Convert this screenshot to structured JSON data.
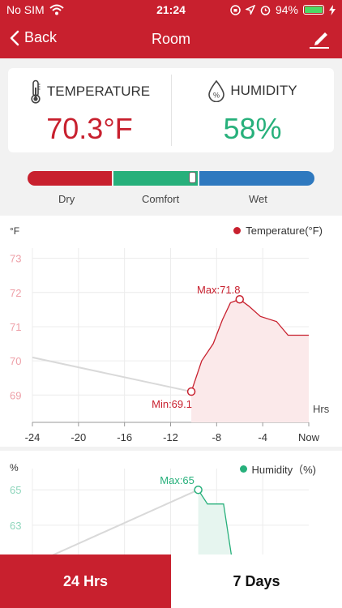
{
  "status_bar": {
    "carrier": "No SIM",
    "time": "21:24",
    "battery": "94%"
  },
  "nav": {
    "back_label": "Back",
    "title": "Room"
  },
  "summary": {
    "temperature": {
      "label": "TEMPERATURE",
      "value": "70.3°F",
      "color": "#c8202e"
    },
    "humidity": {
      "label": "HUMIDITY",
      "value": "58%",
      "color": "#27b07b"
    }
  },
  "comfort_bar": {
    "labels": [
      "Dry",
      "Comfort",
      "Wet"
    ],
    "colors": [
      "#c8202e",
      "#27b07b",
      "#2f79bf"
    ]
  },
  "chart_data": [
    {
      "type": "line",
      "y_unit": "°F",
      "legend": "Temperature(°F)",
      "x_label": "Hrs",
      "x_ticks": [
        "-24",
        "-20",
        "-16",
        "-12",
        "-8",
        "-4",
        "Now"
      ],
      "y_ticks": [
        73,
        72,
        71,
        70,
        69
      ],
      "ylim": [
        68.2,
        73.3
      ],
      "xlim": [
        -24,
        0
      ],
      "series": [
        {
          "values": [
            [
              -24,
              70.1
            ],
            [
              -10.2,
              69.1
            ]
          ],
          "color": "#d9d9d9"
        },
        {
          "values": [
            [
              -10.2,
              69.1
            ],
            [
              -9.3,
              70.0
            ],
            [
              -8.3,
              70.5
            ],
            [
              -7.5,
              71.2
            ],
            [
              -6.8,
              71.7
            ],
            [
              -6.0,
              71.8
            ],
            [
              -5.2,
              71.6
            ],
            [
              -4.2,
              71.3
            ],
            [
              -2.8,
              71.15
            ],
            [
              -1.8,
              70.75
            ],
            [
              0,
              70.75
            ]
          ],
          "color": "#c8202e"
        }
      ],
      "annotations": [
        {
          "text": "Max:71.8",
          "x": -6.0,
          "y": 71.8
        },
        {
          "text": "Min:69.1",
          "x": -10.2,
          "y": 69.1
        }
      ]
    },
    {
      "type": "line",
      "y_unit": "%",
      "legend": "Humidity（%)",
      "y_ticks": [
        65,
        63
      ],
      "ylim": [
        60.8,
        66.2
      ],
      "xlim": [
        -24,
        0
      ],
      "series": [
        {
          "values": [
            [
              -24,
              60.8
            ],
            [
              -9.6,
              65
            ]
          ],
          "color": "#d9d9d9"
        },
        {
          "values": [
            [
              -9.6,
              65
            ],
            [
              -8.8,
              64.2
            ],
            [
              -7.4,
              64.2
            ],
            [
              -6.6,
              60.8
            ]
          ],
          "color": "#27b07b"
        }
      ],
      "annotations": [
        {
          "text": "Max:65",
          "x": -9.6,
          "y": 65
        }
      ]
    }
  ],
  "bottom_tabs": [
    {
      "label": "24 Hrs",
      "active": true
    },
    {
      "label": "7 Days",
      "active": false
    }
  ]
}
